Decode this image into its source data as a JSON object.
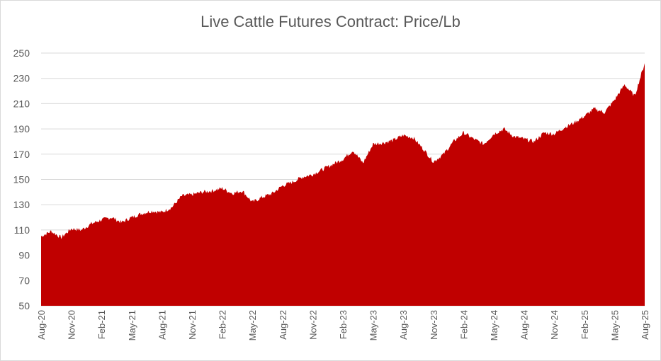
{
  "chart_data": {
    "type": "area",
    "title": "Live Cattle Futures Contract: Price/Lb",
    "xlabel": "",
    "ylabel": "",
    "ylim": [
      50,
      250
    ],
    "yticks": [
      50,
      70,
      90,
      110,
      130,
      150,
      170,
      190,
      210,
      230,
      250
    ],
    "xticks": [
      "Aug-20",
      "Nov-20",
      "Feb-21",
      "May-21",
      "Aug-21",
      "Nov-21",
      "Feb-22",
      "May-22",
      "Aug-22",
      "Nov-22",
      "Feb-23",
      "May-23",
      "Aug-23",
      "Nov-23",
      "Feb-24",
      "May-24",
      "Aug-24",
      "Nov-24",
      "Feb-25",
      "May-25",
      "Aug-25"
    ],
    "grid": true,
    "legend": "none",
    "fill_color": "#c00000",
    "series": [
      {
        "x": [
          "Aug-20",
          "Sep-20",
          "Oct-20",
          "Nov-20",
          "Dec-20",
          "Jan-21",
          "Feb-21",
          "Mar-21",
          "Apr-21",
          "May-21",
          "Jun-21",
          "Jul-21",
          "Aug-21",
          "Sep-21",
          "Oct-21",
          "Nov-21",
          "Dec-21",
          "Jan-22",
          "Feb-22",
          "Mar-22",
          "Apr-22",
          "May-22",
          "Jun-22",
          "Jul-22",
          "Aug-22",
          "Sep-22",
          "Oct-22",
          "Nov-22",
          "Dec-22",
          "Jan-23",
          "Feb-23",
          "Mar-23",
          "Apr-23",
          "May-23",
          "Jun-23",
          "Jul-23",
          "Aug-23",
          "Sep-23",
          "Oct-23",
          "Nov-23",
          "Dec-23",
          "Jan-24",
          "Feb-24",
          "Mar-24",
          "Apr-24",
          "May-24",
          "Jun-24",
          "Jul-24",
          "Aug-24",
          "Sep-24",
          "Oct-24",
          "Nov-24",
          "Dec-24",
          "Jan-25",
          "Feb-25",
          "Mar-25",
          "Apr-25",
          "May-25",
          "Jun-25",
          "Jul-25",
          "Aug-25"
        ],
        "values": [
          105,
          109,
          104,
          111,
          110,
          115,
          118,
          120,
          116,
          120,
          123,
          125,
          124,
          128,
          137,
          138,
          140,
          141,
          143,
          139,
          141,
          132,
          136,
          139,
          145,
          148,
          152,
          154,
          158,
          162,
          166,
          173,
          163,
          178,
          179,
          181,
          185,
          183,
          174,
          164,
          170,
          180,
          187,
          182,
          178,
          186,
          190,
          184,
          182,
          180,
          187,
          186,
          191,
          195,
          200,
          206,
          203,
          213,
          225,
          216,
          242
        ]
      }
    ]
  }
}
